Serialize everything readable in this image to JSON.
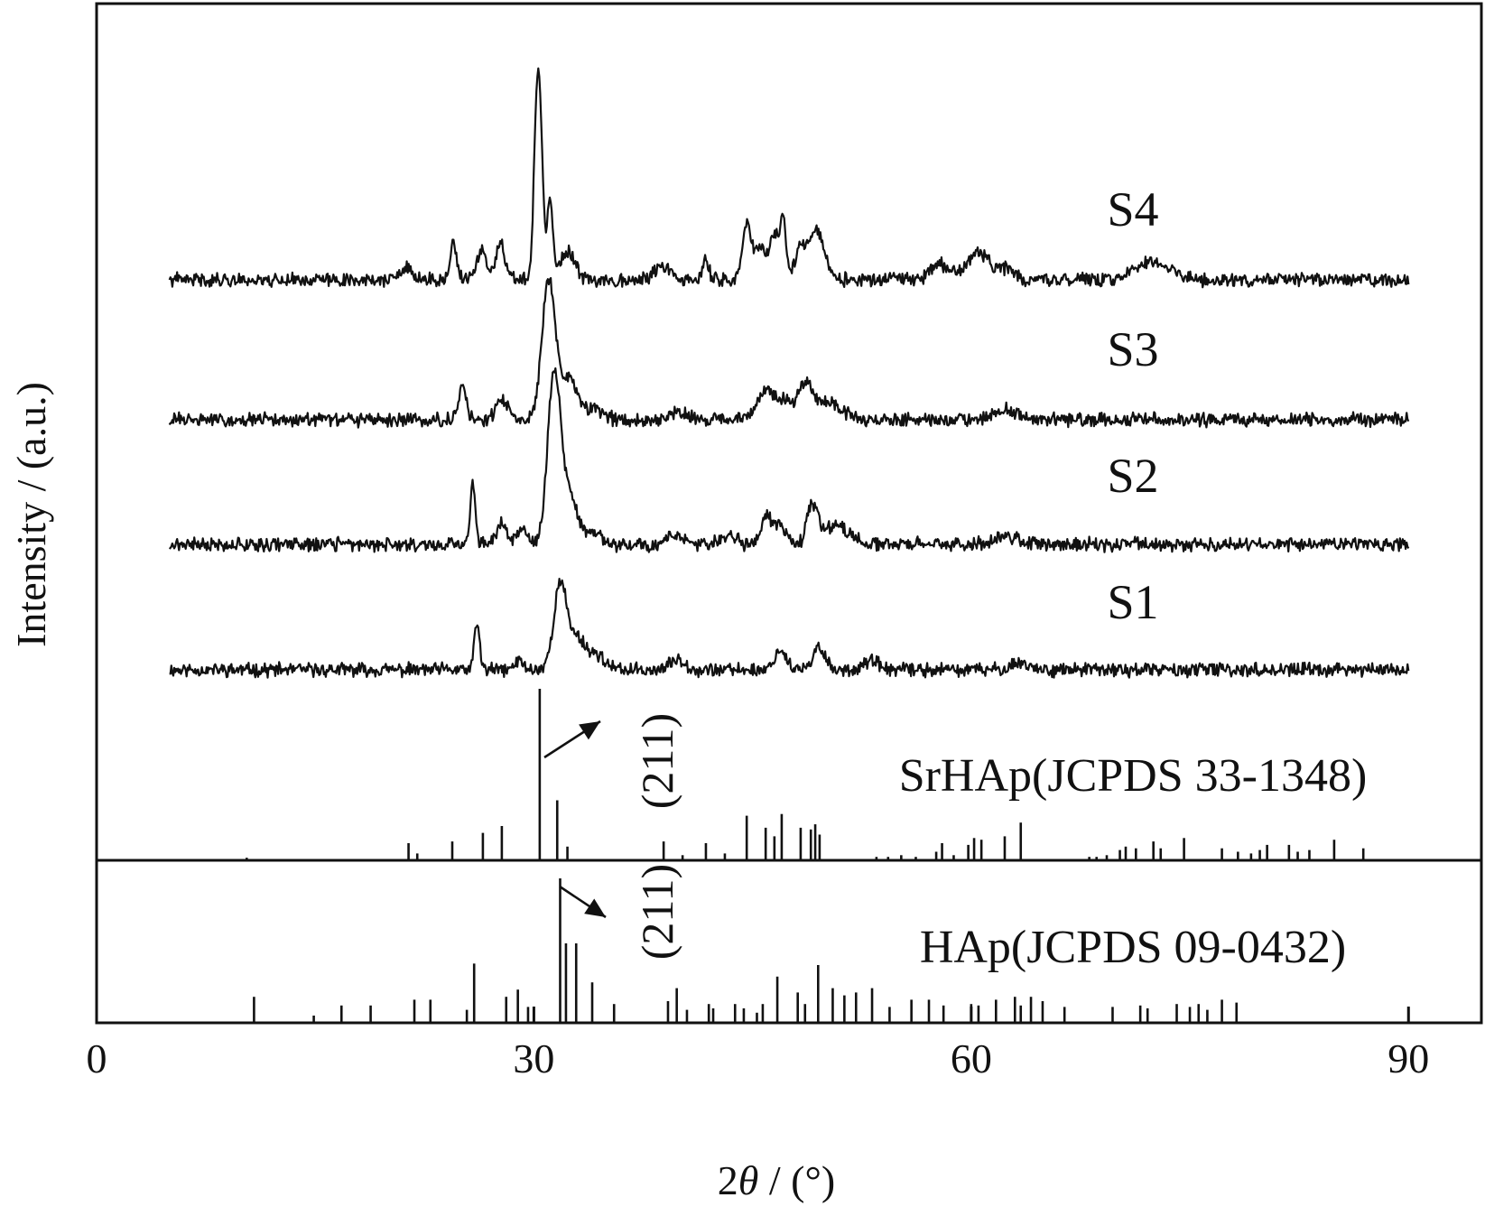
{
  "chart_data": {
    "type": "line",
    "xlabel_parts": [
      "2",
      "θ",
      " / (°)"
    ],
    "ylabel": "Intensity / (a.u.)",
    "xlim": [
      0,
      95
    ],
    "xticks": [
      "0",
      "30",
      "60",
      "90"
    ],
    "series": [
      {
        "name": "S4",
        "baseline": 0,
        "noise": 0.06,
        "seed": 41,
        "peaks": [
          [
            21.2,
            0.12,
            0.4
          ],
          [
            24.5,
            0.42,
            0.2
          ],
          [
            26.4,
            0.35,
            0.3
          ],
          [
            27.7,
            0.4,
            0.3
          ],
          [
            30.3,
            2.4,
            0.25
          ],
          [
            31.1,
            0.85,
            0.2
          ],
          [
            32.3,
            0.3,
            0.5
          ],
          [
            38.8,
            0.15,
            0.5
          ],
          [
            41.8,
            0.22,
            0.2
          ],
          [
            44.6,
            0.6,
            0.3
          ],
          [
            45.5,
            0.35,
            0.4
          ],
          [
            46.5,
            0.5,
            0.3
          ],
          [
            47.1,
            0.65,
            0.2
          ],
          [
            48.3,
            0.35,
            0.4
          ],
          [
            49.4,
            0.55,
            0.5
          ],
          [
            57.8,
            0.18,
            0.6
          ],
          [
            60.5,
            0.3,
            0.8
          ],
          [
            62.5,
            0.12,
            0.5
          ],
          [
            71.8,
            0.15,
            1.0
          ],
          [
            73.2,
            0.12,
            0.8
          ]
        ]
      },
      {
        "name": "S3",
        "baseline": 0,
        "noise": 0.06,
        "seed": 31,
        "peaks": [
          [
            25.1,
            0.42,
            0.25
          ],
          [
            27.8,
            0.22,
            0.4
          ],
          [
            31.0,
            1.55,
            0.45
          ],
          [
            32.4,
            0.45,
            0.6
          ],
          [
            34.2,
            0.12,
            0.6
          ],
          [
            40.0,
            0.1,
            0.6
          ],
          [
            45.8,
            0.3,
            0.5
          ],
          [
            47.0,
            0.22,
            0.6
          ],
          [
            48.6,
            0.38,
            0.5
          ],
          [
            50.2,
            0.2,
            0.9
          ],
          [
            62.3,
            0.12,
            0.8
          ]
        ]
      },
      {
        "name": "S2",
        "baseline": 0,
        "noise": 0.06,
        "seed": 21,
        "peaks": [
          [
            25.8,
            0.68,
            0.18
          ],
          [
            27.8,
            0.25,
            0.3
          ],
          [
            29.2,
            0.15,
            0.4
          ],
          [
            31.4,
            1.9,
            0.45
          ],
          [
            32.5,
            0.5,
            0.5
          ],
          [
            34.0,
            0.15,
            0.5
          ],
          [
            39.6,
            0.1,
            0.5
          ],
          [
            43.4,
            0.1,
            0.5
          ],
          [
            46.0,
            0.3,
            0.4
          ],
          [
            47.0,
            0.2,
            0.4
          ],
          [
            49.1,
            0.42,
            0.35
          ],
          [
            50.7,
            0.2,
            0.9
          ],
          [
            62.4,
            0.1,
            0.8
          ]
        ]
      },
      {
        "name": "S1",
        "baseline": 0,
        "noise": 0.06,
        "seed": 11,
        "peaks": [
          [
            26.1,
            0.52,
            0.18
          ],
          [
            29.0,
            0.1,
            0.3
          ],
          [
            31.8,
            0.92,
            0.45
          ],
          [
            33.0,
            0.35,
            0.6
          ],
          [
            34.4,
            0.15,
            0.5
          ],
          [
            39.9,
            0.12,
            0.5
          ],
          [
            46.9,
            0.22,
            0.4
          ],
          [
            49.6,
            0.25,
            0.4
          ],
          [
            53.1,
            0.1,
            0.5
          ],
          [
            63.3,
            0.08,
            0.6
          ]
        ]
      }
    ],
    "series_x_range": [
      5,
      90
    ],
    "reference_patterns": [
      {
        "name": "SrHAp(JCPDS 33-1348)",
        "label": "(211)",
        "peaks": [
          [
            10.3,
            0.015
          ],
          [
            21.4,
            0.1
          ],
          [
            22.0,
            0.04
          ],
          [
            24.4,
            0.11
          ],
          [
            26.5,
            0.16
          ],
          [
            27.8,
            0.2
          ],
          [
            30.4,
            1.0
          ],
          [
            31.6,
            0.35
          ],
          [
            32.3,
            0.08
          ],
          [
            38.9,
            0.11
          ],
          [
            40.2,
            0.03
          ],
          [
            41.8,
            0.1
          ],
          [
            43.1,
            0.04
          ],
          [
            44.6,
            0.26
          ],
          [
            45.9,
            0.19
          ],
          [
            46.5,
            0.14
          ],
          [
            47.0,
            0.27
          ],
          [
            48.3,
            0.19
          ],
          [
            49.0,
            0.18
          ],
          [
            49.3,
            0.21
          ],
          [
            49.6,
            0.15
          ],
          [
            53.5,
            0.02
          ],
          [
            54.3,
            0.02
          ],
          [
            55.2,
            0.03
          ],
          [
            56.2,
            0.02
          ],
          [
            57.6,
            0.05
          ],
          [
            58.0,
            0.1
          ],
          [
            58.8,
            0.03
          ],
          [
            59.8,
            0.09
          ],
          [
            60.2,
            0.13
          ],
          [
            60.7,
            0.12
          ],
          [
            62.3,
            0.14
          ],
          [
            63.4,
            0.22
          ],
          [
            68.1,
            0.02
          ],
          [
            68.6,
            0.02
          ],
          [
            69.3,
            0.03
          ],
          [
            70.2,
            0.06
          ],
          [
            70.6,
            0.08
          ],
          [
            71.3,
            0.07
          ],
          [
            72.5,
            0.11
          ],
          [
            73.0,
            0.07
          ],
          [
            74.6,
            0.13
          ],
          [
            77.2,
            0.07
          ],
          [
            78.3,
            0.05
          ],
          [
            79.2,
            0.04
          ],
          [
            79.8,
            0.06
          ],
          [
            80.3,
            0.09
          ],
          [
            81.8,
            0.09
          ],
          [
            82.4,
            0.05
          ],
          [
            83.2,
            0.06
          ],
          [
            84.9,
            0.12
          ],
          [
            86.9,
            0.07
          ]
        ]
      },
      {
        "name": "HAp(JCPDS 09-0432)",
        "label": "(211)",
        "peaks": [
          [
            10.8,
            0.18
          ],
          [
            14.9,
            0.05
          ],
          [
            16.8,
            0.12
          ],
          [
            18.8,
            0.12
          ],
          [
            21.8,
            0.16
          ],
          [
            22.9,
            0.16
          ],
          [
            25.4,
            0.09
          ],
          [
            25.9,
            0.41
          ],
          [
            28.1,
            0.18
          ],
          [
            28.9,
            0.23
          ],
          [
            29.6,
            0.11
          ],
          [
            31.8,
            1.0
          ],
          [
            32.2,
            0.55
          ],
          [
            32.9,
            0.55
          ],
          [
            34.0,
            0.28
          ],
          [
            35.5,
            0.13
          ],
          [
            39.2,
            0.15
          ],
          [
            39.8,
            0.24
          ],
          [
            40.5,
            0.09
          ],
          [
            42.0,
            0.13
          ],
          [
            42.3,
            0.1
          ],
          [
            43.8,
            0.13
          ],
          [
            44.4,
            0.1
          ],
          [
            45.3,
            0.07
          ],
          [
            45.7,
            0.13
          ],
          [
            46.7,
            0.32
          ],
          [
            48.1,
            0.21
          ],
          [
            48.6,
            0.13
          ],
          [
            49.5,
            0.4
          ],
          [
            50.5,
            0.24
          ],
          [
            51.3,
            0.19
          ],
          [
            52.1,
            0.21
          ],
          [
            53.2,
            0.24
          ],
          [
            54.4,
            0.11
          ],
          [
            55.9,
            0.16
          ],
          [
            57.1,
            0.16
          ],
          [
            58.1,
            0.12
          ],
          [
            60.0,
            0.13
          ],
          [
            60.5,
            0.12
          ],
          [
            61.7,
            0.16
          ],
          [
            63.0,
            0.18
          ],
          [
            63.4,
            0.12
          ],
          [
            64.1,
            0.18
          ],
          [
            64.9,
            0.15
          ],
          [
            66.4,
            0.11
          ],
          [
            69.7,
            0.11
          ],
          [
            71.6,
            0.12
          ],
          [
            72.1,
            0.1
          ],
          [
            74.1,
            0.13
          ],
          [
            75.0,
            0.11
          ],
          [
            75.6,
            0.13
          ],
          [
            76.2,
            0.09
          ],
          [
            77.2,
            0.16
          ],
          [
            78.2,
            0.14
          ],
          [
            90.0,
            0.1
          ]
        ]
      }
    ],
    "grid": false,
    "legend": "labels next to curves"
  }
}
